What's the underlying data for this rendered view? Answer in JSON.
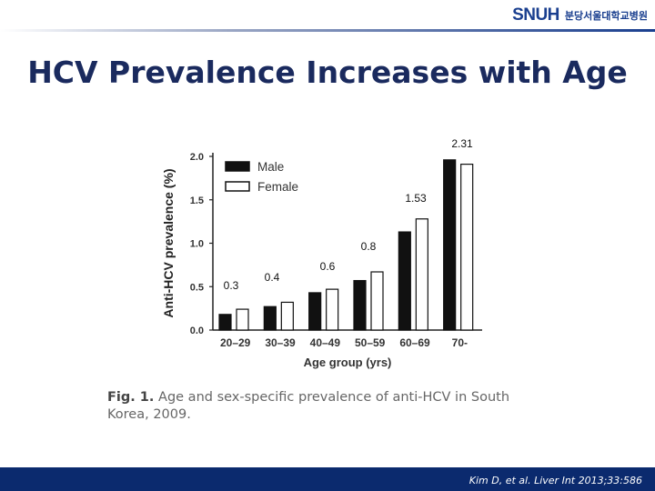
{
  "header": {
    "logo_mark": "SNUH",
    "logo_text": "분당서울대학교병원",
    "accent_color": "#1a3f8f"
  },
  "slide": {
    "title": "HCV Prevalence Increases with Age"
  },
  "figure": {
    "caption_label": "Fig. 1.",
    "caption_text": "Age and sex-specific prevalence of anti-HCV in South Korea, 2009."
  },
  "footer": {
    "citation": "Kim D, et al. Liver Int 2013;33:586",
    "color": "#0b2a6e"
  },
  "chart_data": {
    "type": "bar",
    "xlabel": "Age group (yrs)",
    "ylabel": "Anti-HCV prevalence (%)",
    "ylim": [
      0,
      2.0
    ],
    "yticks": [
      "0.0",
      "0.5",
      "1.0",
      "1.5",
      "2.0"
    ],
    "categories": [
      "20–29",
      "30–39",
      "40–49",
      "50–59",
      "60–69",
      "70-"
    ],
    "series": [
      {
        "name": "Male",
        "color": "#111111",
        "values": [
          0.18,
          0.27,
          0.43,
          0.57,
          1.13,
          1.96
        ]
      },
      {
        "name": "Female",
        "color": "#ffffff",
        "values": [
          0.24,
          0.32,
          0.47,
          0.67,
          1.28,
          1.91
        ]
      }
    ],
    "legend_position": "top-left",
    "annotations": [
      "0.3",
      "0.4",
      "0.6",
      "0.8",
      "1.53",
      "2.31"
    ]
  }
}
